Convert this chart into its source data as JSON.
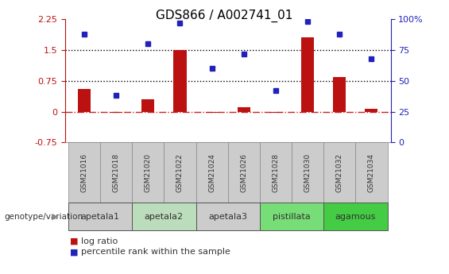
{
  "title": "GDS866 / A002741_01",
  "samples": [
    "GSM21016",
    "GSM21018",
    "GSM21020",
    "GSM21022",
    "GSM21024",
    "GSM21026",
    "GSM21028",
    "GSM21030",
    "GSM21032",
    "GSM21034"
  ],
  "log_ratio": [
    0.55,
    -0.02,
    0.3,
    1.5,
    -0.02,
    0.1,
    -0.02,
    1.8,
    0.85,
    0.07
  ],
  "percentile_rank": [
    88,
    38,
    80,
    97,
    60,
    72,
    42,
    98,
    88,
    68
  ],
  "ylim_left": [
    -0.75,
    2.25
  ],
  "ylim_right": [
    0,
    100
  ],
  "hlines": [
    0.75,
    1.5
  ],
  "hline_zero": 0.0,
  "bar_color": "#bb1111",
  "dot_color": "#2222bb",
  "zero_line_color": "#cc2222",
  "groups": [
    {
      "label": "apetala1",
      "start": 0,
      "end": 2,
      "color": "#cccccc"
    },
    {
      "label": "apetala2",
      "start": 2,
      "end": 4,
      "color": "#bbddbb"
    },
    {
      "label": "apetala3",
      "start": 4,
      "end": 6,
      "color": "#cccccc"
    },
    {
      "label": "pistillata",
      "start": 6,
      "end": 8,
      "color": "#77dd77"
    },
    {
      "label": "agamous",
      "start": 8,
      "end": 10,
      "color": "#44cc44"
    }
  ],
  "legend_log_ratio": "log ratio",
  "legend_percentile": "percentile rank within the sample",
  "genotype_label": "genotype/variation",
  "right_yticks": [
    0,
    25,
    50,
    75,
    100
  ],
  "right_yticklabels": [
    "0",
    "25",
    "50",
    "75",
    "100%"
  ],
  "left_yticks": [
    -0.75,
    0,
    0.75,
    1.5,
    2.25
  ],
  "left_yticklabels": [
    "-0.75",
    "0",
    "0.75",
    "1.5",
    "2.25"
  ]
}
